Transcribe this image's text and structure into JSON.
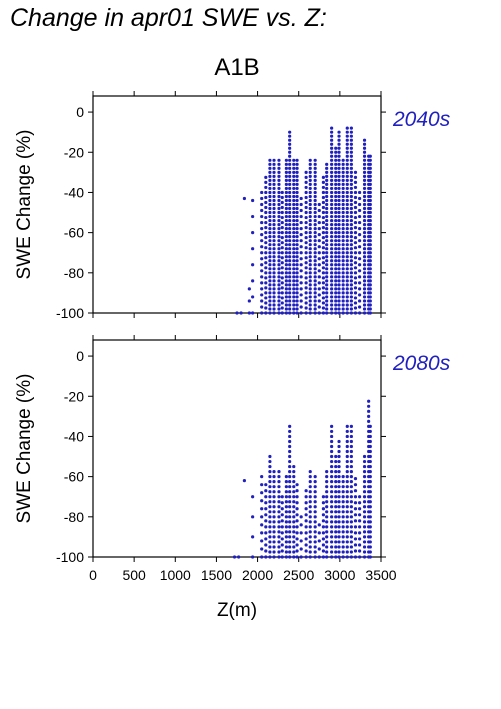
{
  "figure": {
    "title": "Change in apr01 SWE vs. Z:",
    "scenario": "A1B",
    "xlabel": "Z(m)",
    "point_color": "#2020c0"
  },
  "chart_data": [
    {
      "type": "scatter",
      "period": "2040s",
      "ylabel": "SWE Change (%)",
      "xlim": [
        0,
        3500
      ],
      "ylim": [
        -100,
        8
      ],
      "xticks": [
        0,
        500,
        1000,
        1500,
        2000,
        2500,
        3000,
        3500
      ],
      "yticks": [
        0,
        -20,
        -40,
        -60,
        -80,
        -100
      ],
      "elevation_columns": [
        {
          "x": 1750,
          "ymin": -100,
          "ymax": -100,
          "step": 2
        },
        {
          "x": 1800,
          "ymin": -100,
          "ymax": -100,
          "step": 2
        },
        {
          "x": 1840,
          "ymin": -43,
          "ymax": -43,
          "step": 2
        },
        {
          "x": 1900,
          "ymin": -100,
          "ymax": -88,
          "step": 6
        },
        {
          "x": 1940,
          "ymin": -100,
          "ymax": -43,
          "step": 8
        },
        {
          "x": 2050,
          "ymin": -100,
          "ymax": -38,
          "step": 3
        },
        {
          "x": 2100,
          "ymin": -100,
          "ymax": -32,
          "step": 2.5
        },
        {
          "x": 2150,
          "ymin": -100,
          "ymax": -24,
          "step": 2
        },
        {
          "x": 2200,
          "ymin": -100,
          "ymax": -24,
          "step": 2
        },
        {
          "x": 2260,
          "ymin": -100,
          "ymax": -24,
          "step": 2
        },
        {
          "x": 2300,
          "ymin": -100,
          "ymax": -40,
          "step": 2.5
        },
        {
          "x": 2350,
          "ymin": -100,
          "ymax": -24,
          "step": 2
        },
        {
          "x": 2390,
          "ymin": -100,
          "ymax": -9,
          "step": 2
        },
        {
          "x": 2440,
          "ymin": -100,
          "ymax": -23,
          "step": 2
        },
        {
          "x": 2480,
          "ymin": -100,
          "ymax": -23,
          "step": 2
        },
        {
          "x": 2530,
          "ymin": -100,
          "ymax": -43,
          "step": 3
        },
        {
          "x": 2590,
          "ymin": -100,
          "ymax": -30,
          "step": 2.5
        },
        {
          "x": 2640,
          "ymin": -100,
          "ymax": -23,
          "step": 2
        },
        {
          "x": 2700,
          "ymin": -100,
          "ymax": -23,
          "step": 2
        },
        {
          "x": 2750,
          "ymin": -100,
          "ymax": -46,
          "step": 3
        },
        {
          "x": 2800,
          "ymin": -100,
          "ymax": -31,
          "step": 2.5
        },
        {
          "x": 2840,
          "ymin": -100,
          "ymax": -25,
          "step": 2
        },
        {
          "x": 2900,
          "ymin": -100,
          "ymax": -7,
          "step": 2
        },
        {
          "x": 2950,
          "ymin": -100,
          "ymax": -17,
          "step": 2
        },
        {
          "x": 2990,
          "ymin": -100,
          "ymax": -9,
          "step": 2
        },
        {
          "x": 3040,
          "ymin": -100,
          "ymax": -24,
          "step": 2
        },
        {
          "x": 3090,
          "ymin": -100,
          "ymax": -8,
          "step": 2
        },
        {
          "x": 3140,
          "ymin": -100,
          "ymax": -8,
          "step": 2
        },
        {
          "x": 3190,
          "ymin": -100,
          "ymax": -30,
          "step": 2.5
        },
        {
          "x": 3240,
          "ymin": -100,
          "ymax": -40,
          "step": 3
        },
        {
          "x": 3300,
          "ymin": -100,
          "ymax": -13,
          "step": 2
        },
        {
          "x": 3350,
          "ymin": -100,
          "ymax": -22,
          "step": 2
        },
        {
          "x": 3370,
          "ymin": -100,
          "ymax": -22,
          "step": 2
        }
      ]
    },
    {
      "type": "scatter",
      "period": "2080s",
      "ylabel": "SWE Change (%)",
      "xlim": [
        0,
        3500
      ],
      "ylim": [
        -100,
        8
      ],
      "xticks": [
        0,
        500,
        1000,
        1500,
        2000,
        2500,
        3000,
        3500
      ],
      "yticks": [
        0,
        -20,
        -40,
        -60,
        -80,
        -100
      ],
      "elevation_columns": [
        {
          "x": 1720,
          "ymin": -100,
          "ymax": -100,
          "step": 2
        },
        {
          "x": 1770,
          "ymin": -100,
          "ymax": -100,
          "step": 2
        },
        {
          "x": 1840,
          "ymin": -62,
          "ymax": -62,
          "step": 2
        },
        {
          "x": 1940,
          "ymin": -100,
          "ymax": -63,
          "step": 10
        },
        {
          "x": 2050,
          "ymin": -100,
          "ymax": -60,
          "step": 4
        },
        {
          "x": 2100,
          "ymin": -100,
          "ymax": -62,
          "step": 3
        },
        {
          "x": 2150,
          "ymin": -100,
          "ymax": -48,
          "step": 2.5
        },
        {
          "x": 2200,
          "ymin": -100,
          "ymax": -57,
          "step": 2.5
        },
        {
          "x": 2260,
          "ymin": -100,
          "ymax": -57,
          "step": 2.5
        },
        {
          "x": 2300,
          "ymin": -100,
          "ymax": -70,
          "step": 3
        },
        {
          "x": 2350,
          "ymin": -100,
          "ymax": -58,
          "step": 2.5
        },
        {
          "x": 2390,
          "ymin": -100,
          "ymax": -33,
          "step": 2.5
        },
        {
          "x": 2440,
          "ymin": -100,
          "ymax": -55,
          "step": 2.5
        },
        {
          "x": 2480,
          "ymin": -100,
          "ymax": -63,
          "step": 3
        },
        {
          "x": 2530,
          "ymin": -100,
          "ymax": -80,
          "step": 4
        },
        {
          "x": 2590,
          "ymin": -100,
          "ymax": -66,
          "step": 3
        },
        {
          "x": 2640,
          "ymin": -100,
          "ymax": -57,
          "step": 2.5
        },
        {
          "x": 2700,
          "ymin": -100,
          "ymax": -59,
          "step": 2.5
        },
        {
          "x": 2750,
          "ymin": -100,
          "ymax": -82,
          "step": 4
        },
        {
          "x": 2800,
          "ymin": -100,
          "ymax": -69,
          "step": 3
        },
        {
          "x": 2840,
          "ymin": -100,
          "ymax": -57,
          "step": 2.5
        },
        {
          "x": 2900,
          "ymin": -100,
          "ymax": -33,
          "step": 2.5
        },
        {
          "x": 2950,
          "ymin": -100,
          "ymax": -48,
          "step": 2.5
        },
        {
          "x": 2990,
          "ymin": -100,
          "ymax": -41,
          "step": 2.5
        },
        {
          "x": 3040,
          "ymin": -100,
          "ymax": -59,
          "step": 2.5
        },
        {
          "x": 3090,
          "ymin": -100,
          "ymax": -33,
          "step": 2.5
        },
        {
          "x": 3140,
          "ymin": -100,
          "ymax": -33,
          "step": 2.5
        },
        {
          "x": 3190,
          "ymin": -100,
          "ymax": -61,
          "step": 3
        },
        {
          "x": 3240,
          "ymin": -100,
          "ymax": -70,
          "step": 3
        },
        {
          "x": 3300,
          "ymin": -100,
          "ymax": -50,
          "step": 2.5
        },
        {
          "x": 3350,
          "ymin": -100,
          "ymax": -21,
          "step": 2.5
        },
        {
          "x": 3370,
          "ymin": -100,
          "ymax": -34,
          "step": 2.5
        }
      ]
    }
  ]
}
